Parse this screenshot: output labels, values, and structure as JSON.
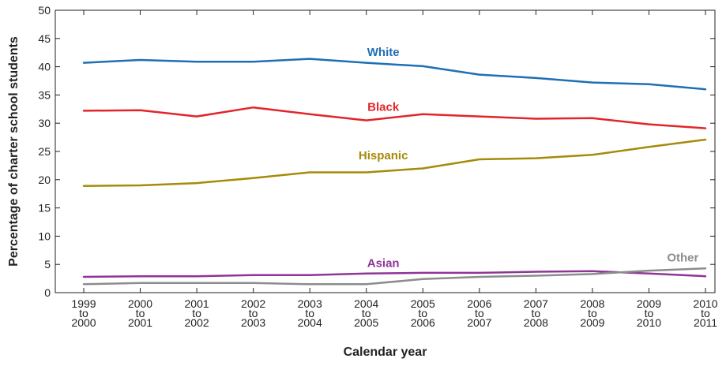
{
  "chart_data": {
    "type": "line",
    "title": "",
    "xlabel": "Calendar year",
    "ylabel": "Percentage of charter school students",
    "ylim": [
      0,
      50
    ],
    "yticks": [
      "0",
      "5",
      "10",
      "15",
      "20",
      "25",
      "30",
      "35",
      "40",
      "45",
      "50"
    ],
    "categories": [
      [
        "1999",
        "to",
        "2000"
      ],
      [
        "2000",
        "to",
        "2001"
      ],
      [
        "2001",
        "to",
        "2002"
      ],
      [
        "2002",
        "to",
        "2003"
      ],
      [
        "2003",
        "to",
        "2004"
      ],
      [
        "2004",
        "to",
        "2005"
      ],
      [
        "2005",
        "to",
        "2006"
      ],
      [
        "2006",
        "to",
        "2007"
      ],
      [
        "2007",
        "to",
        "2008"
      ],
      [
        "2008",
        "to",
        "2009"
      ],
      [
        "2009",
        "to",
        "2010"
      ],
      [
        "2010",
        "to",
        "2011"
      ]
    ],
    "grid": false,
    "series": [
      {
        "name": "White",
        "color": "#1f6fb4",
        "values": [
          40.7,
          41.2,
          40.9,
          40.9,
          41.4,
          40.7,
          40.1,
          38.6,
          38.0,
          37.2,
          36.9,
          36.0
        ]
      },
      {
        "name": "Black",
        "color": "#e2252b",
        "values": [
          32.2,
          32.3,
          31.2,
          32.8,
          31.6,
          30.5,
          31.6,
          31.2,
          30.8,
          30.9,
          29.8,
          29.1
        ]
      },
      {
        "name": "Hispanic",
        "color": "#a68a0a",
        "values": [
          18.9,
          19.0,
          19.4,
          20.3,
          21.3,
          21.3,
          22.0,
          23.6,
          23.8,
          24.4,
          25.8,
          27.1
        ]
      },
      {
        "name": "Asian",
        "color": "#8e3596",
        "values": [
          2.8,
          2.9,
          2.9,
          3.1,
          3.1,
          3.4,
          3.5,
          3.5,
          3.7,
          3.8,
          3.4,
          2.9
        ]
      },
      {
        "name": "Other",
        "color": "#8a8c8e",
        "values": [
          1.5,
          1.7,
          1.7,
          1.7,
          1.5,
          1.5,
          2.4,
          2.8,
          3.0,
          3.3,
          3.9,
          4.3
        ]
      }
    ]
  }
}
